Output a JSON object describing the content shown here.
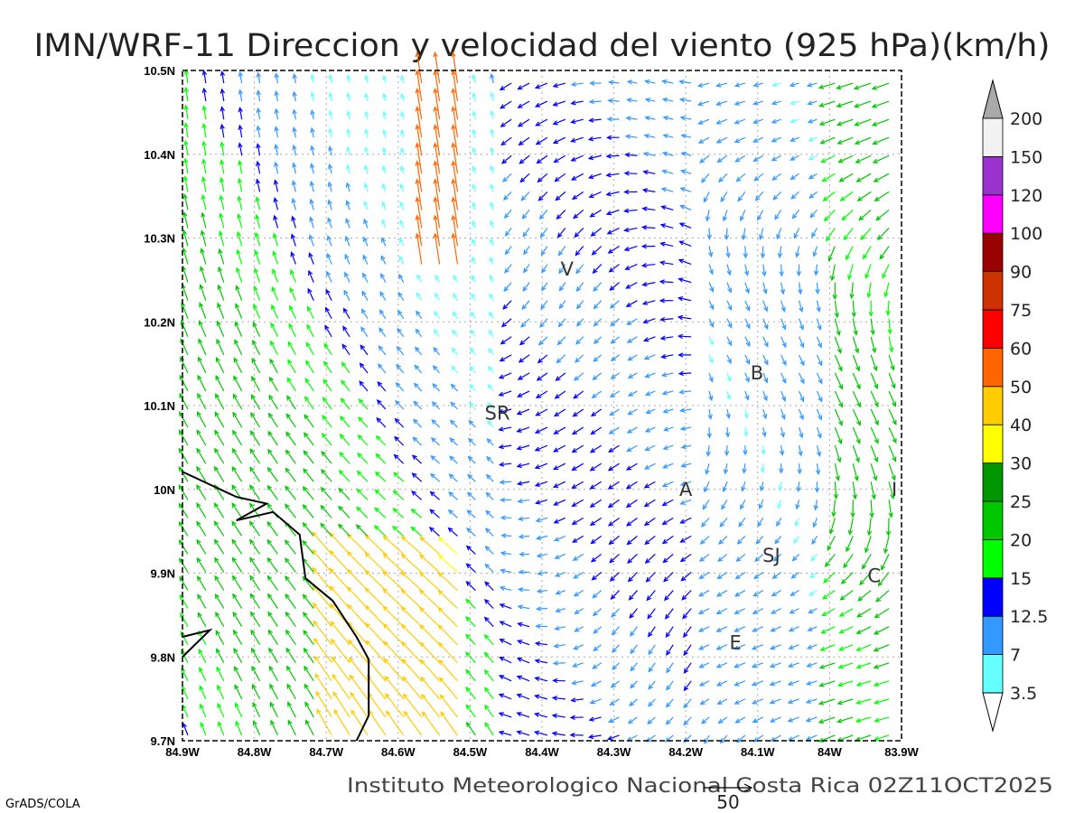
{
  "title": "IMN/WRF-11 Direccion y velocidad del viento (925 hPa)(km/h)",
  "footer": "Instituto Meteorologico Nacional Costa Rica 02Z11OCT2025",
  "credit": "GrADS/COLA",
  "reference_vector": {
    "label": "50",
    "value": 50
  },
  "map": {
    "lon_range": [
      -84.9,
      -83.9
    ],
    "lat_range": [
      9.7,
      10.5
    ],
    "x_ticks": [
      "84.9W",
      "84.8W",
      "84.7W",
      "84.6W",
      "84.5W",
      "84.4W",
      "84.3W",
      "84.2W",
      "84.1W",
      "84W",
      "83.9W"
    ],
    "y_ticks": [
      "9.7N",
      "9.8N",
      "9.9N",
      "10N",
      "10.1N",
      "10.2N",
      "10.3N",
      "10.4N",
      "10.5N"
    ],
    "places": [
      {
        "label": "V",
        "lon": -84.365,
        "lat": 10.264
      },
      {
        "label": "B",
        "lon": -84.101,
        "lat": 10.14
      },
      {
        "label": "SR",
        "lon": -84.462,
        "lat": 10.092
      },
      {
        "label": "A",
        "lon": -84.2,
        "lat": 10.001
      },
      {
        "label": "SJ",
        "lon": -84.081,
        "lat": 9.922
      },
      {
        "label": "C",
        "lon": -83.938,
        "lat": 9.898
      },
      {
        "label": "E",
        "lon": -84.131,
        "lat": 9.818
      },
      {
        "label": "I",
        "lon": -83.91,
        "lat": 10.001
      }
    ],
    "coastline": [
      [
        -84.9,
        10.021
      ],
      [
        -84.865,
        10.007
      ],
      [
        -84.825,
        9.991
      ],
      [
        -84.783,
        9.983
      ],
      [
        -84.825,
        9.963
      ],
      [
        -84.774,
        9.973
      ],
      [
        -84.737,
        9.946
      ],
      [
        -84.729,
        9.894
      ],
      [
        -84.691,
        9.867
      ],
      [
        -84.658,
        9.824
      ],
      [
        -84.641,
        9.797
      ],
      [
        -84.641,
        9.73
      ],
      [
        -84.658,
        9.7
      ]
    ],
    "island": [
      [
        -84.9,
        9.824
      ],
      [
        -84.862,
        9.832
      ],
      [
        -84.9,
        9.8
      ]
    ]
  },
  "colorbar": {
    "levels": [
      "3.5",
      "7",
      "12.5",
      "15",
      "20",
      "25",
      "30",
      "40",
      "50",
      "60",
      "75",
      "90",
      "100",
      "120",
      "150",
      "200"
    ],
    "thresholds": [
      3.5,
      7,
      12.5,
      15,
      20,
      25,
      30,
      40,
      50,
      60,
      75,
      90,
      100,
      120,
      150,
      200
    ],
    "colors": [
      "#66ffff",
      "#3399ff",
      "#0000ff",
      "#00ff00",
      "#00c800",
      "#009600",
      "#ffff00",
      "#ffcc00",
      "#ff6600",
      "#ff0000",
      "#cc3300",
      "#990000",
      "#ff00ff",
      "#9933cc",
      "#f2f2f2",
      "#aaaaaa"
    ],
    "low_color": "#ffffff",
    "high_color": "#aaaaaa"
  }
}
